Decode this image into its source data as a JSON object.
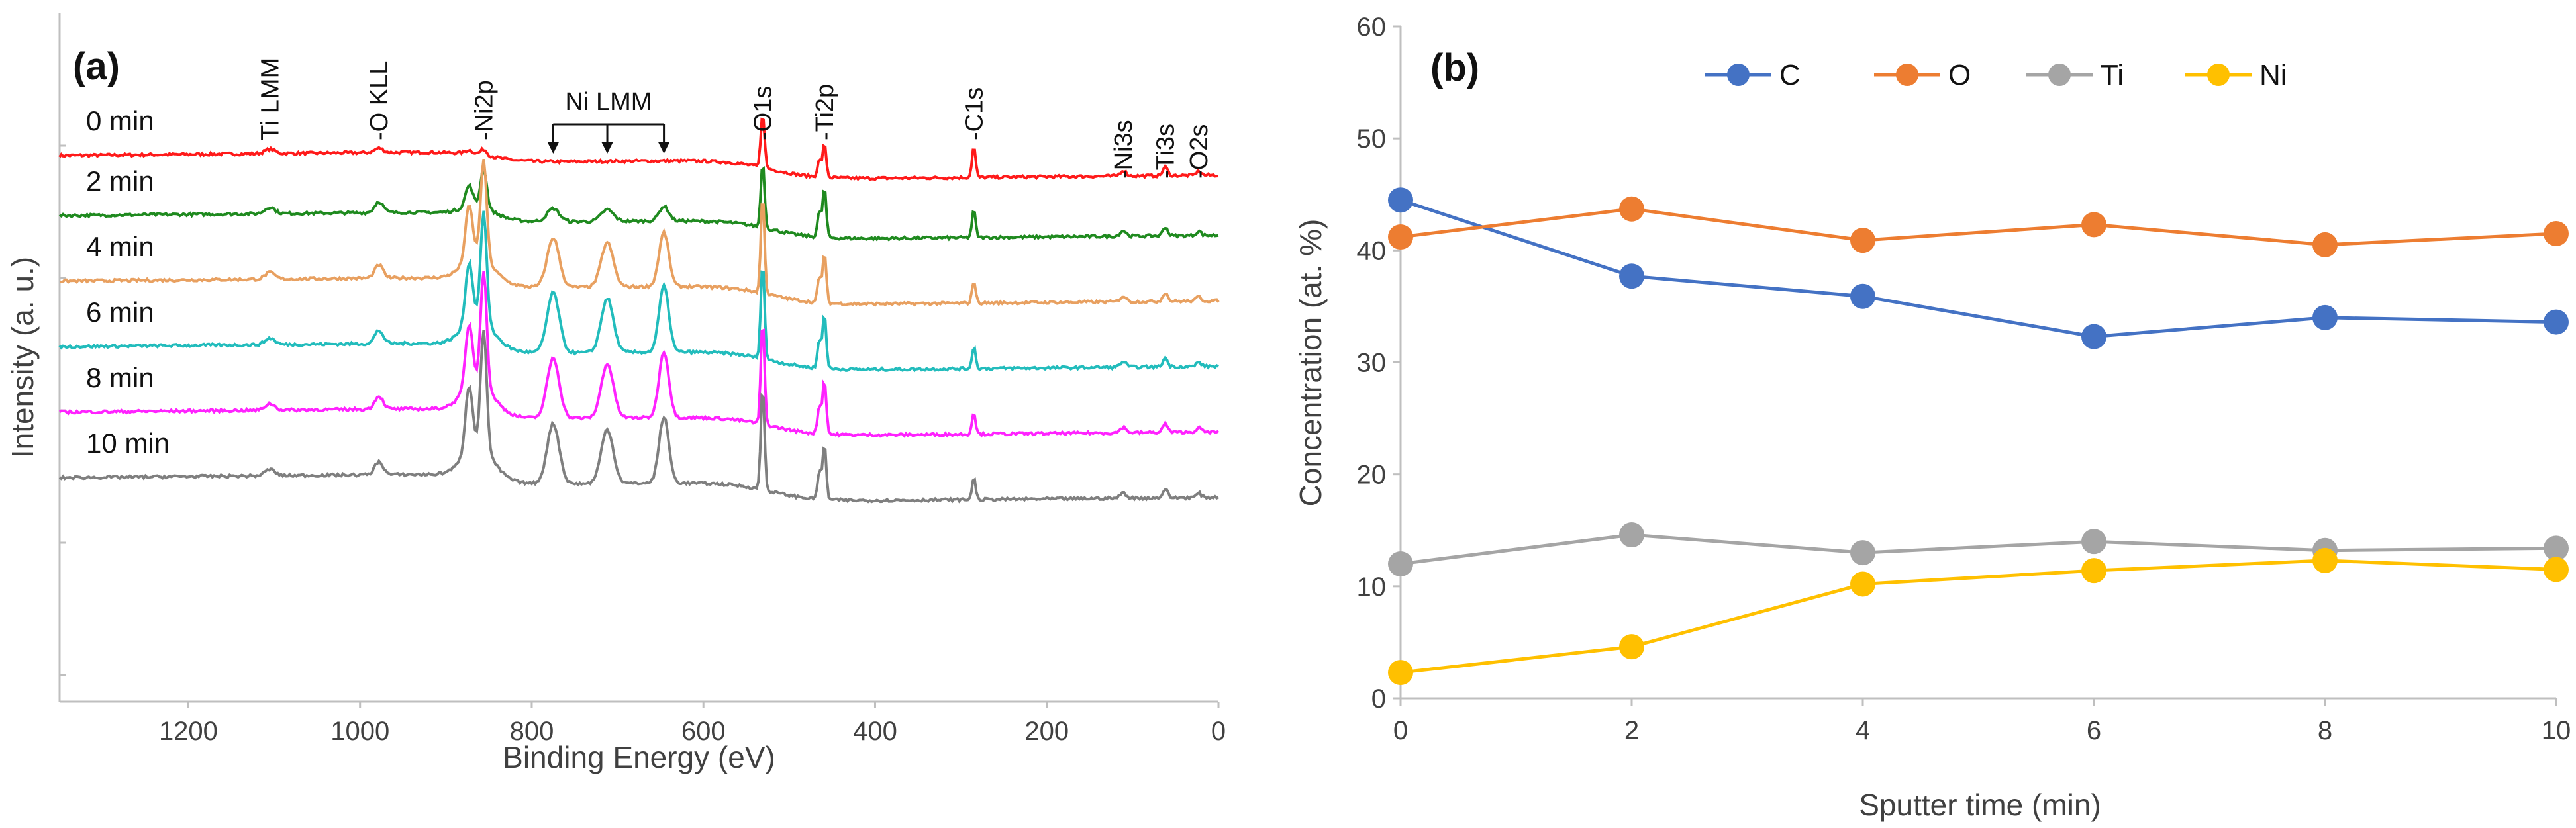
{
  "chart_data": [
    {
      "type": "line",
      "panel_label": "(a)",
      "xlabel": "Binding Energy (eV)",
      "ylabel": "Intensity (a. u.)",
      "xlim": [
        1350,
        0
      ],
      "xticks": [
        "1200",
        "1000",
        "800",
        "600",
        "400",
        "200",
        "0"
      ],
      "xtick_values": [
        1200,
        1000,
        800,
        600,
        400,
        200,
        0
      ],
      "annotations": [
        {
          "text": "Ti LMM",
          "energy": 1105
        },
        {
          "text": "-O KLL",
          "energy": 978
        },
        {
          "text": "-Ni2p",
          "energy": 856
        },
        {
          "text": "-O1s",
          "energy": 531
        },
        {
          "text": "-Ti2p",
          "energy": 459
        },
        {
          "text": "-C1s",
          "energy": 285
        },
        {
          "text": "-Ni3s",
          "energy": 111
        },
        {
          "text": "-Ti3s",
          "energy": 62
        },
        {
          "text": "-O2s",
          "energy": 23
        }
      ],
      "group_label": {
        "text": "Ni LMM",
        "energies": [
          775,
          712,
          646
        ]
      },
      "series": [
        {
          "name": "0 min",
          "color": "#ff1a1a",
          "offset": 0.0,
          "peaks": {
            "O1s": 0.5,
            "Ti2p": 0.3,
            "C1s": 0.28,
            "Ni2p": 0.05,
            "NiLMM": 0.0,
            "OKLL": 0.04,
            "TiLMM": 0.04
          }
        },
        {
          "name": "2 min",
          "color": "#1f8a1f",
          "offset": -0.55,
          "peaks": {
            "O1s": 0.6,
            "Ti2p": 0.45,
            "C1s": 0.25,
            "Ni2p": 0.35,
            "NiLMM": 0.12,
            "OKLL": 0.1,
            "TiLMM": 0.06
          }
        },
        {
          "name": "4 min",
          "color": "#e8a060",
          "offset": -1.15,
          "peaks": {
            "O1s": 0.9,
            "Ti2p": 0.45,
            "C1s": 0.2,
            "Ni2p": 0.9,
            "NiLMM": 0.45,
            "OKLL": 0.12,
            "TiLMM": 0.06
          }
        },
        {
          "name": "6 min",
          "color": "#22bcbc",
          "offset": -1.75,
          "peaks": {
            "O1s": 0.9,
            "Ti2p": 0.5,
            "C1s": 0.2,
            "Ni2p": 1.0,
            "NiLMM": 0.55,
            "OKLL": 0.12,
            "TiLMM": 0.06
          }
        },
        {
          "name": "8 min",
          "color": "#ff22ff",
          "offset": -2.35,
          "peaks": {
            "O1s": 0.95,
            "Ti2p": 0.5,
            "C1s": 0.2,
            "Ni2p": 1.05,
            "NiLMM": 0.55,
            "OKLL": 0.12,
            "TiLMM": 0.06
          }
        },
        {
          "name": "10 min",
          "color": "#7f7f7f",
          "offset": -2.95,
          "peaks": {
            "O1s": 0.95,
            "Ti2p": 0.5,
            "C1s": 0.2,
            "Ni2p": 1.1,
            "NiLMM": 0.55,
            "OKLL": 0.12,
            "TiLMM": 0.06
          }
        }
      ]
    },
    {
      "type": "line",
      "panel_label": "(b)",
      "xlabel": "Sputter time (min)",
      "ylabel": "Concentration (at. %)",
      "x": [
        0,
        2,
        4,
        6,
        8,
        10
      ],
      "xticks": [
        "0",
        "2",
        "4",
        "6",
        "8",
        "10"
      ],
      "xlim": [
        0,
        10
      ],
      "ylim": [
        0,
        60
      ],
      "yticks": [
        "0",
        "10",
        "20",
        "30",
        "40",
        "50",
        "60"
      ],
      "legend_position": "top",
      "series": [
        {
          "name": "C",
          "color": "#4472c4",
          "values": [
            44.5,
            37.7,
            35.9,
            32.3,
            34.0,
            33.6
          ]
        },
        {
          "name": "O",
          "color": "#ed7d31",
          "values": [
            41.2,
            43.7,
            40.9,
            42.3,
            40.5,
            41.5
          ]
        },
        {
          "name": "Ti",
          "color": "#a5a5a5",
          "values": [
            12.0,
            14.6,
            13.0,
            14.0,
            13.2,
            13.4
          ]
        },
        {
          "name": "Ni",
          "color": "#ffc000",
          "values": [
            2.3,
            4.6,
            10.2,
            11.4,
            12.3,
            11.5
          ]
        }
      ]
    }
  ]
}
